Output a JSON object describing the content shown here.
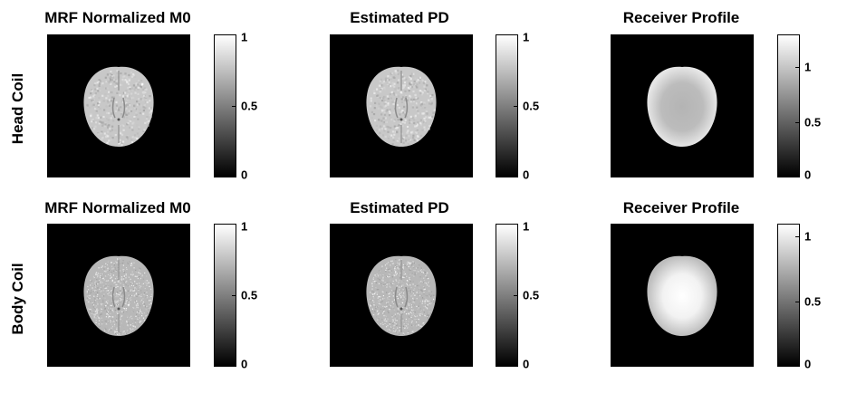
{
  "rows": [
    {
      "label": "Head Coil",
      "panels": [
        {
          "title": "MRF Normalized M0",
          "colorbar": {
            "ticks": [
              "1",
              "0.5",
              "0"
            ],
            "max": 1
          },
          "kind": "brain-smooth"
        },
        {
          "title": "Estimated PD",
          "colorbar": {
            "ticks": [
              "1",
              "0.5",
              "0"
            ],
            "max": 1
          },
          "kind": "brain-smooth"
        },
        {
          "title": "Receiver Profile",
          "colorbar": {
            "ticks": [
              "1",
              "0.5",
              "0"
            ],
            "max": 1.3
          },
          "kind": "profile-head"
        }
      ]
    },
    {
      "label": "Body Coil",
      "panels": [
        {
          "title": "MRF Normalized M0",
          "colorbar": {
            "ticks": [
              "1",
              "0.5",
              "0"
            ],
            "max": 1
          },
          "kind": "brain-noisy"
        },
        {
          "title": "Estimated PD",
          "colorbar": {
            "ticks": [
              "1",
              "0.5",
              "0"
            ],
            "max": 1
          },
          "kind": "brain-noisy"
        },
        {
          "title": "Receiver Profile",
          "colorbar": {
            "ticks": [
              "1",
              "0.5",
              "0"
            ],
            "max": 1.1
          },
          "kind": "profile-body"
        }
      ]
    }
  ],
  "colors": {
    "background": "#000000",
    "colormap": "gray"
  }
}
